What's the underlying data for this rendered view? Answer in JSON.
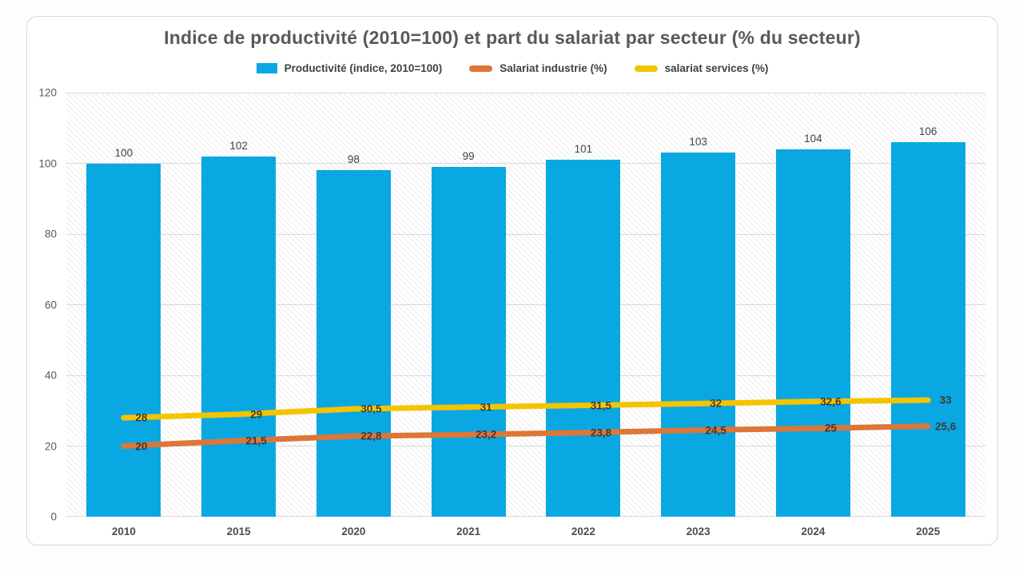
{
  "chart_data": {
    "type": "bar",
    "title": "Indice de productivité (2010=100) et part du salariat par secteur (% du secteur)",
    "categories": [
      "2010",
      "2015",
      "2020",
      "2021",
      "2022",
      "2023",
      "2024",
      "2025"
    ],
    "series": [
      {
        "name": "Productivité (indice, 2010=100)",
        "type": "bar",
        "color": "#0aa8e2",
        "values": [
          100,
          102,
          98,
          99,
          101,
          103,
          104,
          106
        ],
        "labels": [
          "100",
          "102",
          "98",
          "99",
          "101",
          "103",
          "104",
          "106"
        ]
      },
      {
        "name": "Salariat industrie (%)",
        "type": "line",
        "color": "#dd7637",
        "values": [
          20,
          21.5,
          22.8,
          23.2,
          23.8,
          24.5,
          25,
          25.6
        ],
        "labels": [
          "20",
          "21,5",
          "22,8",
          "23,2",
          "23,8",
          "24,5",
          "25",
          "25,6"
        ]
      },
      {
        "name": "salariat services (%)",
        "type": "line",
        "color": "#f5c400",
        "values": [
          28,
          29,
          30.5,
          31,
          31.5,
          32,
          32.6,
          33
        ],
        "labels": [
          "28",
          "29",
          "30,5",
          "31",
          "31,5",
          "32",
          "32,6",
          "33"
        ]
      }
    ],
    "ylim": [
      0,
      120
    ],
    "ytick_step": 20,
    "ytick_labels": [
      "0",
      "20",
      "40",
      "60",
      "80",
      "100",
      "120"
    ],
    "grid": true,
    "legend_position": "top",
    "colors": {
      "bar_fill": "#0aa8e2",
      "line_industrie": "#dd7637",
      "line_services": "#f5c400",
      "gridline": "#d9d9d9",
      "text_axis": "#595959",
      "text_title": "#595959"
    }
  }
}
